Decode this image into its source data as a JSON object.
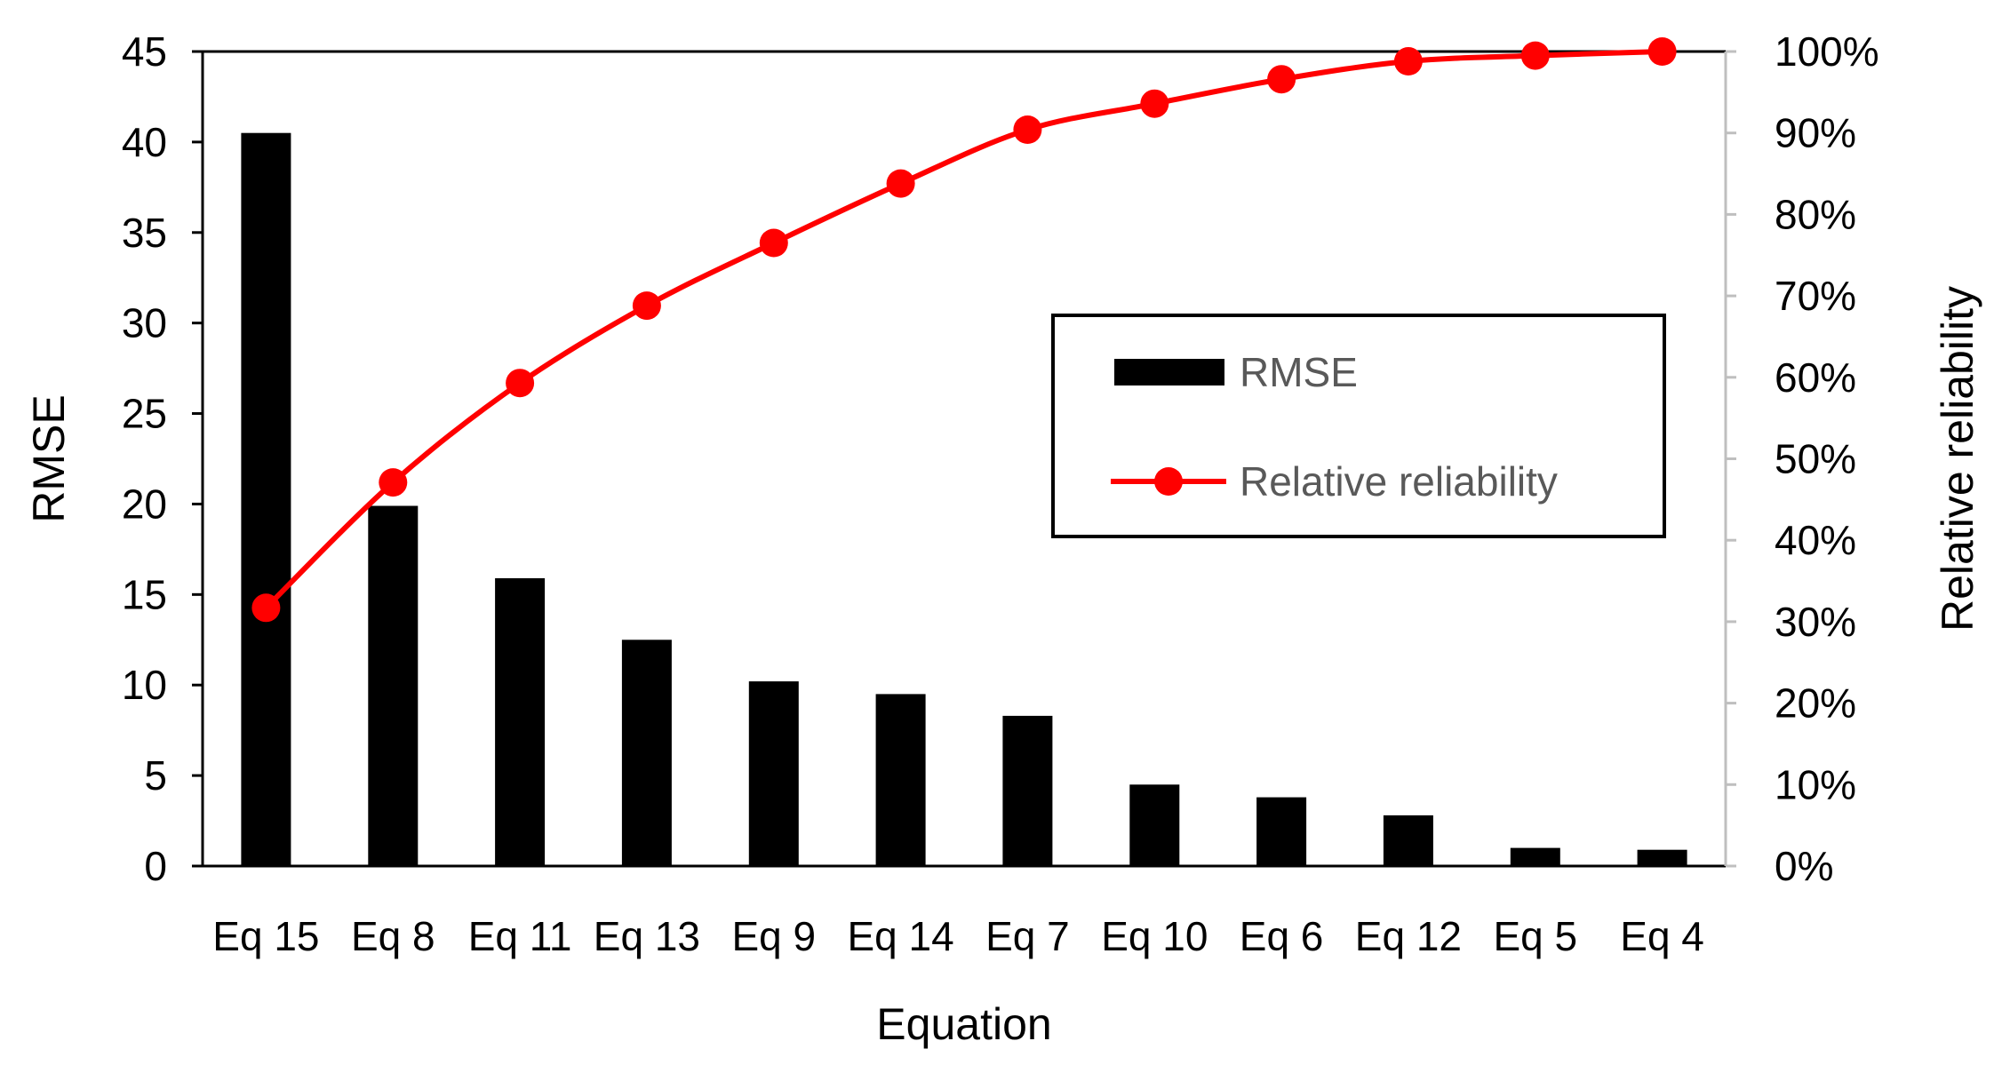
{
  "chart_data": {
    "type": "bar",
    "categories": [
      "Eq 15",
      "Eq 8",
      "Eq 11",
      "Eq 13",
      "Eq 9",
      "Eq 14",
      "Eq 7",
      "Eq 10",
      "Eq 6",
      "Eq 12",
      "Eq 5",
      "Eq 4"
    ],
    "series": [
      {
        "name": "RMSE",
        "type": "bar",
        "axis": "left",
        "color": "#000000",
        "values": [
          40.5,
          19.9,
          15.9,
          12.5,
          10.2,
          9.5,
          8.3,
          4.5,
          3.8,
          2.8,
          1.0,
          0.9
        ]
      },
      {
        "name": "Relative reliability",
        "type": "line",
        "axis": "right",
        "color": "#ff0000",
        "values": [
          0.317,
          0.471,
          0.593,
          0.688,
          0.765,
          0.838,
          0.904,
          0.936,
          0.966,
          0.988,
          0.995,
          1.0
        ]
      }
    ],
    "xlabel": "Equation",
    "ylabel": "RMSE",
    "y2label": "Relative reliability",
    "ylim": [
      0,
      45
    ],
    "y2lim": [
      0,
      1
    ],
    "yticks": [
      "0",
      "5",
      "10",
      "15",
      "20",
      "25",
      "30",
      "35",
      "40",
      "45"
    ],
    "y2ticks": [
      "0%",
      "10%",
      "20%",
      "30%",
      "40%",
      "50%",
      "60%",
      "70%",
      "80%",
      "90%",
      "100%"
    ],
    "grid": false,
    "legend": {
      "position": "center-right",
      "items": [
        "RMSE",
        "Relative reliability"
      ]
    }
  }
}
